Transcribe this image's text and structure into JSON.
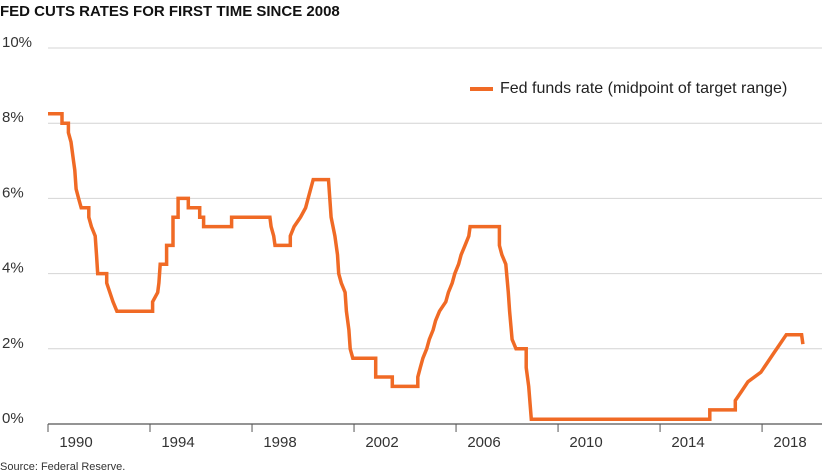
{
  "chart_data": {
    "type": "line",
    "title": "FED CUTS RATES FOR FIRST TIME SINCE 2008",
    "source": "Source: Federal Reserve.",
    "legend": "upper right",
    "grid": true,
    "xlim": [
      1990,
      2020.35
    ],
    "xticks": [
      1990,
      1994,
      1998,
      2002,
      2006,
      2010,
      2014,
      2018
    ],
    "ylim": [
      0,
      10
    ],
    "yticks": [
      {
        "value": 0,
        "label": "0%"
      },
      {
        "value": 2,
        "label": "2%"
      },
      {
        "value": 4,
        "label": "4%"
      },
      {
        "value": 6,
        "label": "6%"
      },
      {
        "value": 8,
        "label": "8%"
      },
      {
        "value": 10,
        "label": "10%"
      }
    ],
    "x": [
      1990.0,
      1990.55,
      1990.55,
      1990.8,
      1990.8,
      1990.9,
      1991.0,
      1991.05,
      1991.1,
      1991.2,
      1991.3,
      1991.6,
      1991.6,
      1991.7,
      1991.85,
      1991.9,
      1991.95,
      1992.3,
      1992.3,
      1992.55,
      1992.7,
      1994.1,
      1994.1,
      1994.3,
      1994.35,
      1994.4,
      1994.65,
      1994.65,
      1994.9,
      1994.9,
      1995.1,
      1995.1,
      1995.5,
      1995.5,
      1995.95,
      1995.95,
      1996.1,
      1996.1,
      1997.2,
      1997.2,
      1998.7,
      1998.75,
      1998.85,
      1998.9,
      1999.5,
      1999.5,
      1999.65,
      1999.9,
      2000.1,
      2000.2,
      2000.4,
      2001.0,
      2001.05,
      2001.1,
      2001.25,
      2001.35,
      2001.4,
      2001.5,
      2001.65,
      2001.7,
      2001.8,
      2001.85,
      2001.95,
      2002.85,
      2002.85,
      2003.5,
      2003.5,
      2004.5,
      2004.5,
      2004.6,
      2004.7,
      2004.85,
      2004.95,
      2005.1,
      2005.2,
      2005.35,
      2005.6,
      2005.7,
      2005.85,
      2005.95,
      2006.1,
      2006.2,
      2006.35,
      2006.5,
      2006.55,
      2007.7,
      2007.7,
      2007.8,
      2007.95,
      2008.05,
      2008.1,
      2008.2,
      2008.35,
      2008.75,
      2008.75,
      2008.85,
      2008.95,
      2015.95,
      2015.95,
      2016.95,
      2016.95,
      2017.2,
      2017.45,
      2017.95,
      2018.2,
      2018.45,
      2018.7,
      2018.95,
      2019.55,
      2019.6
    ],
    "series": [
      {
        "name": "Fed funds rate (midpoint of target range)",
        "color": "#f06a25",
        "values": [
          8.25,
          8.25,
          8.0,
          8.0,
          7.75,
          7.5,
          7.0,
          6.75,
          6.25,
          6.0,
          5.75,
          5.75,
          5.5,
          5.25,
          5.0,
          4.5,
          4.0,
          4.0,
          3.75,
          3.25,
          3.0,
          3.0,
          3.25,
          3.5,
          3.75,
          4.25,
          4.25,
          4.75,
          4.75,
          5.5,
          5.5,
          6.0,
          6.0,
          5.75,
          5.75,
          5.5,
          5.5,
          5.25,
          5.25,
          5.5,
          5.5,
          5.25,
          5.0,
          4.75,
          4.75,
          5.0,
          5.25,
          5.5,
          5.75,
          6.0,
          6.5,
          6.5,
          6.0,
          5.5,
          5.0,
          4.5,
          4.0,
          3.75,
          3.5,
          3.0,
          2.5,
          2.0,
          1.75,
          1.75,
          1.25,
          1.25,
          1.0,
          1.0,
          1.25,
          1.5,
          1.75,
          2.0,
          2.25,
          2.5,
          2.75,
          3.0,
          3.25,
          3.5,
          3.75,
          4.0,
          4.25,
          4.5,
          4.75,
          5.0,
          5.25,
          5.25,
          4.75,
          4.5,
          4.25,
          3.5,
          3.0,
          2.25,
          2.0,
          2.0,
          1.5,
          1.0,
          0.125,
          0.125,
          0.375,
          0.375,
          0.625,
          0.875,
          1.125,
          1.375,
          1.625,
          1.875,
          2.125,
          2.375,
          2.375,
          2.125
        ]
      }
    ]
  }
}
